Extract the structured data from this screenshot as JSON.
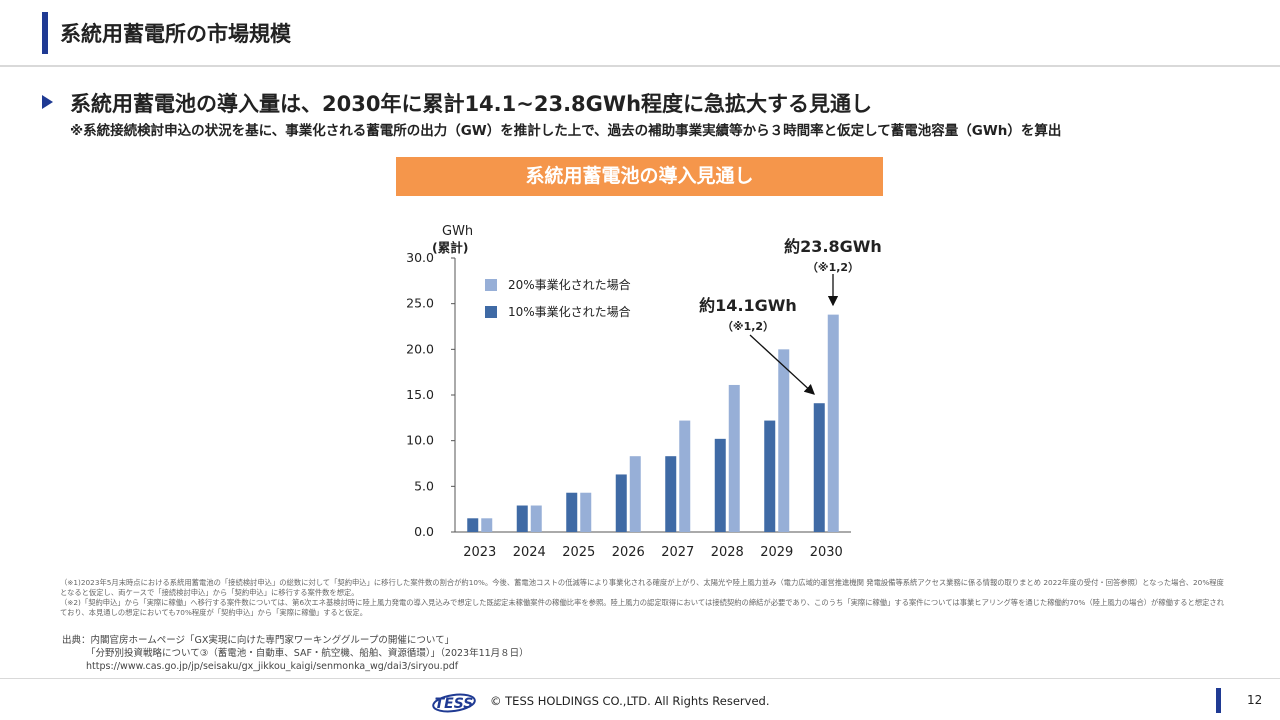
{
  "header": {
    "title": "系統用蓄電所の市場規模",
    "headline": "系統用蓄電池の導入量は、2030年に累計14.1~23.8GWh程度に急拡大する見通し",
    "subnote": "※系統接続検討申込の状況を基に、事業化される蓄電所の出力（GW）を推計した上で、過去の補助事業実績等から３時間率と仮定して蓄電池容量（GWh）を算出"
  },
  "banner": {
    "text": "系統用蓄電池の導入見通し"
  },
  "chart_data": {
    "type": "bar",
    "title": "系統用蓄電池の導入見通し",
    "ylabel": "GWh",
    "ylabel_sub": "(累計)",
    "ylim": [
      0,
      30
    ],
    "yticks": [
      "0.0",
      "5.0",
      "10.0",
      "15.0",
      "20.0",
      "25.0",
      "30.0"
    ],
    "categories": [
      "2023",
      "2024",
      "2025",
      "2026",
      "2027",
      "2028",
      "2029",
      "2030"
    ],
    "series": [
      {
        "name": "10%事業化された場合",
        "color": "#3f6aa5",
        "values": [
          1.5,
          2.9,
          4.3,
          6.3,
          8.3,
          10.2,
          12.2,
          14.1
        ]
      },
      {
        "name": "20%事業化された場合",
        "color": "#97afd7",
        "values": [
          1.5,
          2.9,
          4.3,
          8.3,
          12.2,
          16.1,
          20.0,
          23.8
        ]
      }
    ],
    "legend": "top-left",
    "annotations": [
      {
        "label": "約23.8GWh",
        "note": "（※1,2）",
        "target": "2030 / 20%事業化された場合"
      },
      {
        "label": "約14.1GWh",
        "note": "（※1,2）",
        "target": "2030 / 10%事業化された場合"
      }
    ]
  },
  "footnotes": {
    "note1": "（※1)2023年5月末時点における系統用蓄電池の「接続検討申込」の総数に対して「契約申込」に移行した案件数の割合が約10%。今後、蓄電池コストの低減等により事業化される確度が上がり、太陽光や陸上風力並み（電力広域的運営推進機関 発電設備等系統アクセス業務に係る情報の取りまとめ 2022年度の受付・回答参照）となった場合、20%程度となると仮定し、両ケースで「接続検討申込」から「契約申込」に移行する案件数を想定。",
    "note2": "（※2)「契約申込」から「実際に稼働」へ移行する案件数については、第6次エネ基検討時に陸上風力発電の導入見込みで想定した既認定未稼働案件の稼働比率を参照。陸上風力の認定取得においては接続契約の締結が必要であり、このうち「実際に稼働」する案件については事業ヒアリング等を通じた稼働約70%（陸上風力の場合）が稼働すると想定されており、本見通しの想定においても70%程度が「契約申込」から「実際に稼働」すると仮定。"
  },
  "source": {
    "line1": "出典：内閣官房ホームページ「GX実現に向けた専門家ワーキンググループの開催について」",
    "line2": "「分野別投資戦略について③（蓄電池・自動車、SAF・航空機、船舶、資源循環）」（2023年11月８日）",
    "line3": "https://www.cas.go.jp/jp/seisaku/gx_jikkou_kaigi/senmonka_wg/dai3/siryou.pdf"
  },
  "footer": {
    "logo_text": "TESS",
    "copyright": "© TESS HOLDINGS CO.,LTD. All Rights Reserved.",
    "page": "12"
  }
}
